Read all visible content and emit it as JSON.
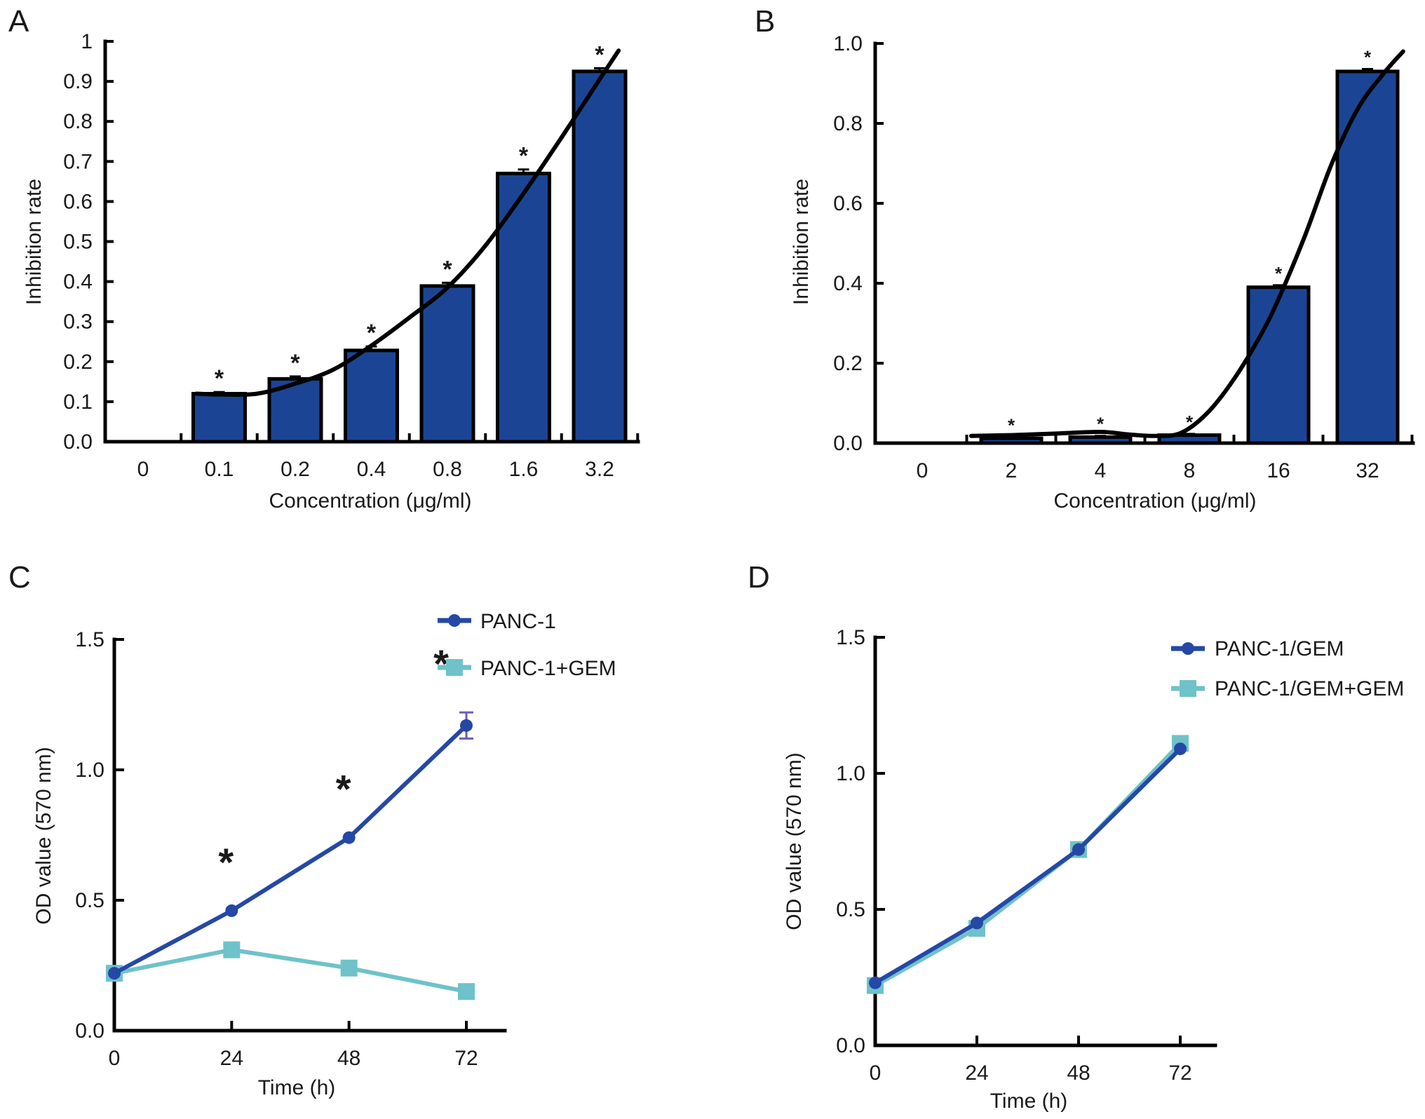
{
  "figure": {
    "panels": [
      "A",
      "B",
      "C",
      "D"
    ]
  },
  "chart_data": [
    {
      "id": "A",
      "type": "bar",
      "panel_label": "A",
      "title": "",
      "xlabel": "Concentration (μg/ml)",
      "ylabel": "Inhibition rate",
      "categories": [
        "0",
        "0.1",
        "0.2",
        "0.4",
        "0.8",
        "1.6",
        "3.2"
      ],
      "values": [
        0,
        0.12,
        0.157,
        0.228,
        0.389,
        0.67,
        0.925
      ],
      "errors": [
        0,
        0.004,
        0.006,
        0.01,
        0.008,
        0.01,
        0.008
      ],
      "significance": [
        "",
        "*",
        "*",
        "*",
        "*",
        "*",
        "*"
      ],
      "fit_curve": {
        "type": "line",
        "description": "fitted trend curve",
        "x_category_index": [
          0.7,
          1.0,
          1.5,
          2.0,
          2.5,
          3.0,
          3.5,
          4.0,
          4.5,
          5.0,
          5.5,
          6.0,
          6.25
        ],
        "y": [
          0.12,
          0.118,
          0.12,
          0.145,
          0.18,
          0.24,
          0.31,
          0.385,
          0.49,
          0.62,
          0.76,
          0.905,
          0.977
        ]
      },
      "ylim": [
        0,
        1
      ],
      "yticks": [
        "0.0",
        "0.1",
        "0.2",
        "0.3",
        "0.4",
        "0.5",
        "0.6",
        "0.7",
        "0.8",
        "0.9",
        "1"
      ],
      "ytick_values": [
        0,
        0.1,
        0.2,
        0.3,
        0.4,
        0.5,
        0.6,
        0.7,
        0.8,
        0.9,
        1.0
      ],
      "bar_color": "#1b4594",
      "grid": false
    },
    {
      "id": "B",
      "type": "bar",
      "panel_label": "B",
      "title": "",
      "xlabel": "Concentration (μg/ml)",
      "ylabel": "Inhibition rate",
      "categories": [
        "0",
        "2",
        "4",
        "8",
        "16",
        "32"
      ],
      "values": [
        0,
        0.012,
        0.015,
        0.02,
        0.39,
        0.93
      ],
      "errors": [
        0,
        0.003,
        0.003,
        0.003,
        0.005,
        0.006
      ],
      "significance": [
        "",
        "*",
        "*",
        "*",
        "*",
        "*"
      ],
      "fit_curve": {
        "type": "line",
        "description": "fitted trend curve",
        "x_category_index": [
          0.55,
          1.0,
          1.5,
          2.0,
          2.3,
          2.6,
          2.9,
          3.2,
          3.5,
          3.8,
          4.0,
          4.3,
          4.6,
          4.9,
          5.2,
          5.4
        ],
        "y": [
          0.018,
          0.02,
          0.024,
          0.028,
          0.022,
          0.018,
          0.025,
          0.075,
          0.16,
          0.27,
          0.36,
          0.52,
          0.7,
          0.84,
          0.93,
          0.98
        ]
      },
      "ylim": [
        0,
        1
      ],
      "yticks": [
        "0.0",
        "0.2",
        "0.4",
        "0.6",
        "0.8",
        "1.0"
      ],
      "ytick_values": [
        0,
        0.2,
        0.4,
        0.6,
        0.8,
        1.0
      ],
      "bar_color": "#1b4594",
      "grid": false
    },
    {
      "id": "C",
      "type": "line",
      "panel_label": "C",
      "title": "",
      "xlabel": "Time (h)",
      "ylabel": "OD value (570 nm)",
      "x": [
        0,
        24,
        48,
        72
      ],
      "xticks": [
        "0",
        "24",
        "48",
        "72"
      ],
      "series": [
        {
          "name": "PANC-1",
          "marker": "circle",
          "color": "#2548a6",
          "values": [
            0.22,
            0.46,
            0.74,
            1.17
          ],
          "errors": [
            0,
            0,
            0,
            0.05
          ]
        },
        {
          "name": "PANC-1+GEM",
          "marker": "square",
          "color": "#6fc2c9",
          "values": [
            0.22,
            0.31,
            0.24,
            0.15
          ],
          "errors": [
            0,
            0,
            0,
            0
          ]
        }
      ],
      "significance": [
        {
          "x": 24,
          "label": "*"
        },
        {
          "x": 48,
          "label": "*"
        },
        {
          "x": 72,
          "label": "*"
        }
      ],
      "ylim": [
        0,
        1.5
      ],
      "xlim": [
        0,
        82
      ],
      "yticks": [
        "0.0",
        "0.5",
        "1.0",
        "1.5"
      ],
      "ytick_values": [
        0,
        0.5,
        1.0,
        1.5
      ],
      "legend": "top-right",
      "grid": false
    },
    {
      "id": "D",
      "type": "line",
      "panel_label": "D",
      "title": "",
      "xlabel": "Time (h)",
      "ylabel": "OD value (570 nm)",
      "x": [
        0,
        24,
        48,
        72
      ],
      "xticks": [
        "0",
        "24",
        "48",
        "72"
      ],
      "series": [
        {
          "name": "PANC-1/GEM",
          "marker": "circle",
          "color": "#2548a6",
          "values": [
            0.23,
            0.45,
            0.72,
            1.09
          ],
          "errors": [
            0,
            0,
            0,
            0
          ]
        },
        {
          "name": "PANC-1/GEM+GEM",
          "marker": "square",
          "color": "#6fc2c9",
          "values": [
            0.22,
            0.43,
            0.72,
            1.11
          ],
          "errors": [
            0,
            0,
            0,
            0
          ]
        }
      ],
      "significance": [],
      "ylim": [
        0,
        1.5
      ],
      "xlim": [
        0,
        80
      ],
      "yticks": [
        "0.0",
        "0.5",
        "1.0",
        "1.5"
      ],
      "ytick_values": [
        0,
        0.5,
        1.0,
        1.5
      ],
      "legend": "top-right",
      "grid": false
    }
  ]
}
